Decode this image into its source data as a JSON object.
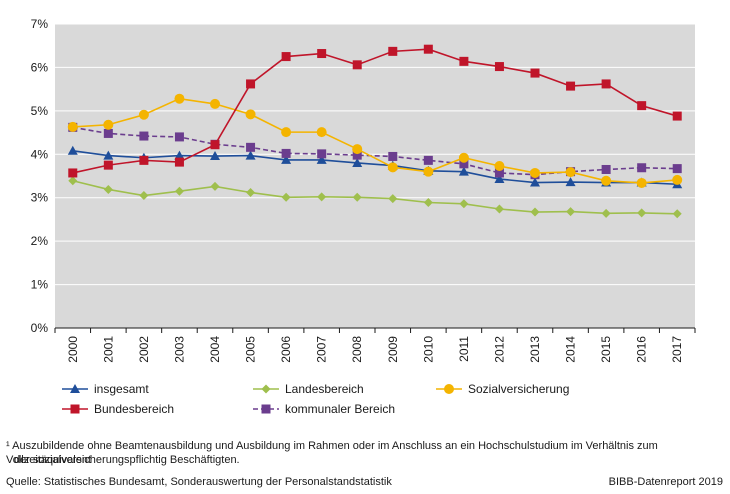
{
  "chart_data": {
    "type": "line",
    "title": "",
    "xlabel": "",
    "ylabel": "",
    "x": [
      "2000",
      "2001",
      "2002",
      "2003",
      "2004",
      "2005",
      "2006",
      "2007",
      "2008",
      "2009",
      "2010",
      "2011",
      "2012",
      "2013",
      "2014",
      "2015",
      "2016",
      "2017"
    ],
    "ylim": [
      0,
      7
    ],
    "yticks": [
      0,
      1,
      2,
      3,
      4,
      5,
      6,
      7
    ],
    "ytick_labels": [
      "0%",
      "1%",
      "2%",
      "3%",
      "4%",
      "5%",
      "6%",
      "7%"
    ],
    "grid": true,
    "series": [
      {
        "name": "insgesamt",
        "color": "#1f4e9a",
        "marker": "triangle",
        "dashed": false,
        "values": [
          4.08,
          3.97,
          3.92,
          3.97,
          3.96,
          3.97,
          3.87,
          3.87,
          3.8,
          3.74,
          3.62,
          3.6,
          3.43,
          3.35,
          3.36,
          3.35,
          3.35,
          3.31
        ]
      },
      {
        "name": "Bundesbereich",
        "color": "#c0152a",
        "marker": "square",
        "dashed": false,
        "values": [
          3.57,
          3.75,
          3.86,
          3.82,
          4.22,
          5.62,
          6.25,
          6.32,
          6.06,
          6.37,
          6.42,
          6.14,
          6.02,
          5.87,
          5.57,
          5.62,
          5.12,
          4.88
        ]
      },
      {
        "name": "Landesbereich",
        "color": "#9fbf4d",
        "marker": "diamond",
        "dashed": false,
        "values": [
          3.39,
          3.19,
          3.05,
          3.15,
          3.26,
          3.12,
          3.01,
          3.02,
          3.01,
          2.98,
          2.89,
          2.86,
          2.74,
          2.67,
          2.68,
          2.64,
          2.65,
          2.63
        ]
      },
      {
        "name": "kommunaler Bereich",
        "color": "#6b3d8e",
        "marker": "square",
        "dashed": true,
        "values": [
          4.62,
          4.48,
          4.42,
          4.4,
          4.23,
          4.16,
          4.02,
          4.01,
          3.98,
          3.95,
          3.86,
          3.78,
          3.57,
          3.53,
          3.6,
          3.65,
          3.69,
          3.67
        ]
      },
      {
        "name": "Sozialversicherung",
        "color": "#f4b400",
        "marker": "circle",
        "dashed": false,
        "values": [
          4.63,
          4.68,
          4.91,
          5.28,
          5.16,
          4.92,
          4.51,
          4.51,
          4.12,
          3.7,
          3.6,
          3.92,
          3.73,
          3.57,
          3.59,
          3.39,
          3.34,
          3.41
        ]
      }
    ],
    "legend_position": "bottom"
  },
  "legend": [
    {
      "label": "insgesamt",
      "series": 0
    },
    {
      "label": "Landesbereich",
      "series": 2
    },
    {
      "label": "Sozialversicherung",
      "series": 4
    },
    {
      "label": "Bundesbereich",
      "series": 1
    },
    {
      "label": "kommunaler Bereich",
      "series": 3
    }
  ],
  "footnote_line1": "¹ Auszubildende ohne Beamtenausbildung und Ausbildung im Rahmen oder im Anschluss an ein Hochschulstudium im Verhältnis zum Vollzeitäquivalent",
  "footnote_line2": "der sozialversicherungspflichtig Beschäftigten.",
  "source": "Quelle: Statistisches Bundesamt, Sonderauswertung der Personalstandstatistik",
  "credit": "BIBB-Datenreport 2019"
}
